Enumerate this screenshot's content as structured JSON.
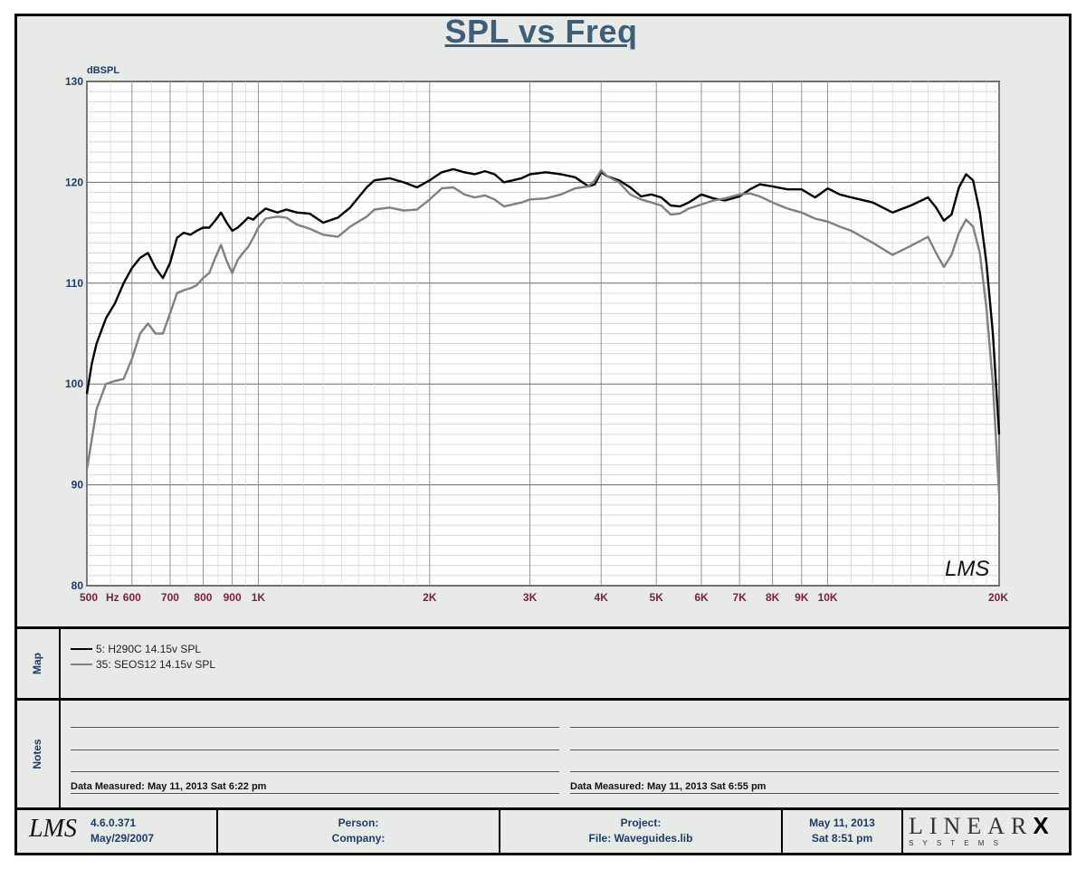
{
  "chart_data": {
    "type": "line",
    "title": "SPL vs Freq",
    "ylabel": "dBSPL",
    "xunit": "Hz",
    "xscale": "log",
    "xlim": [
      500,
      20000
    ],
    "ylim": [
      80,
      130
    ],
    "yticks": [
      80,
      90,
      100,
      110,
      120,
      130
    ],
    "xticks": [
      {
        "value": 500,
        "label": "500"
      },
      {
        "value": 600,
        "label": "600"
      },
      {
        "value": 700,
        "label": "700"
      },
      {
        "value": 800,
        "label": "800"
      },
      {
        "value": 900,
        "label": "900"
      },
      {
        "value": 1000,
        "label": "1K"
      },
      {
        "value": 2000,
        "label": "2K"
      },
      {
        "value": 3000,
        "label": "3K"
      },
      {
        "value": 4000,
        "label": "4K"
      },
      {
        "value": 5000,
        "label": "5K"
      },
      {
        "value": 6000,
        "label": "6K"
      },
      {
        "value": 7000,
        "label": "7K"
      },
      {
        "value": 8000,
        "label": "8K"
      },
      {
        "value": 9000,
        "label": "9K"
      },
      {
        "value": 10000,
        "label": "10K"
      },
      {
        "value": 20000,
        "label": "20K"
      }
    ],
    "grid": true,
    "series": [
      {
        "name": "5: H290C 14.15v SPL",
        "color": "#000000",
        "points": [
          [
            500,
            99
          ],
          [
            510,
            102
          ],
          [
            520,
            104
          ],
          [
            540,
            106.5
          ],
          [
            560,
            108
          ],
          [
            580,
            110
          ],
          [
            600,
            111.5
          ],
          [
            620,
            112.5
          ],
          [
            640,
            113
          ],
          [
            660,
            111.5
          ],
          [
            680,
            110.5
          ],
          [
            700,
            112
          ],
          [
            720,
            114.5
          ],
          [
            740,
            115
          ],
          [
            760,
            114.8
          ],
          [
            780,
            115.2
          ],
          [
            800,
            115.5
          ],
          [
            820,
            115.5
          ],
          [
            840,
            116.2
          ],
          [
            860,
            117
          ],
          [
            880,
            116
          ],
          [
            900,
            115.2
          ],
          [
            920,
            115.5
          ],
          [
            940,
            116
          ],
          [
            960,
            116.5
          ],
          [
            980,
            116.3
          ],
          [
            1000,
            116.8
          ],
          [
            1030,
            117.4
          ],
          [
            1080,
            117
          ],
          [
            1120,
            117.3
          ],
          [
            1170,
            117
          ],
          [
            1230,
            116.9
          ],
          [
            1300,
            116
          ],
          [
            1380,
            116.5
          ],
          [
            1450,
            117.5
          ],
          [
            1550,
            119.5
          ],
          [
            1600,
            120.2
          ],
          [
            1700,
            120.4
          ],
          [
            1800,
            120
          ],
          [
            1900,
            119.5
          ],
          [
            2000,
            120.2
          ],
          [
            2100,
            121
          ],
          [
            2200,
            121.3
          ],
          [
            2300,
            121
          ],
          [
            2400,
            120.8
          ],
          [
            2500,
            121.1
          ],
          [
            2600,
            120.8
          ],
          [
            2700,
            120
          ],
          [
            2900,
            120.4
          ],
          [
            3000,
            120.8
          ],
          [
            3200,
            121
          ],
          [
            3400,
            120.8
          ],
          [
            3600,
            120.5
          ],
          [
            3800,
            119.6
          ],
          [
            3900,
            119.8
          ],
          [
            4000,
            121
          ],
          [
            4100,
            120.6
          ],
          [
            4300,
            120.2
          ],
          [
            4500,
            119.5
          ],
          [
            4700,
            118.6
          ],
          [
            4900,
            118.8
          ],
          [
            5100,
            118.5
          ],
          [
            5300,
            117.7
          ],
          [
            5500,
            117.6
          ],
          [
            5700,
            118
          ],
          [
            6000,
            118.8
          ],
          [
            6300,
            118.4
          ],
          [
            6600,
            118.2
          ],
          [
            7000,
            118.6
          ],
          [
            7300,
            119.3
          ],
          [
            7600,
            119.8
          ],
          [
            8000,
            119.6
          ],
          [
            8500,
            119.3
          ],
          [
            9000,
            119.3
          ],
          [
            9500,
            118.5
          ],
          [
            10000,
            119.4
          ],
          [
            10500,
            118.8
          ],
          [
            11000,
            118.5
          ],
          [
            12000,
            118
          ],
          [
            13000,
            117
          ],
          [
            14000,
            117.7
          ],
          [
            15000,
            118.5
          ],
          [
            15500,
            117.5
          ],
          [
            16000,
            116.2
          ],
          [
            16500,
            116.8
          ],
          [
            17000,
            119.5
          ],
          [
            17500,
            120.8
          ],
          [
            18000,
            120.2
          ],
          [
            18500,
            117
          ],
          [
            19000,
            112
          ],
          [
            19500,
            105
          ],
          [
            20000,
            95
          ]
        ]
      },
      {
        "name": "35: SEOS12 14.15v SPL",
        "color": "#808080",
        "points": [
          [
            500,
            91.5
          ],
          [
            510,
            94.5
          ],
          [
            520,
            97.5
          ],
          [
            540,
            100
          ],
          [
            560,
            100.3
          ],
          [
            580,
            100.5
          ],
          [
            600,
            102.5
          ],
          [
            620,
            105
          ],
          [
            640,
            106
          ],
          [
            660,
            105
          ],
          [
            680,
            105
          ],
          [
            700,
            107
          ],
          [
            720,
            109
          ],
          [
            740,
            109.3
          ],
          [
            760,
            109.5
          ],
          [
            780,
            109.8
          ],
          [
            800,
            110.5
          ],
          [
            820,
            111
          ],
          [
            840,
            112.5
          ],
          [
            860,
            113.8
          ],
          [
            880,
            112.2
          ],
          [
            900,
            111
          ],
          [
            920,
            112.3
          ],
          [
            940,
            113
          ],
          [
            960,
            113.6
          ],
          [
            980,
            114.5
          ],
          [
            1000,
            115.5
          ],
          [
            1030,
            116.4
          ],
          [
            1080,
            116.6
          ],
          [
            1120,
            116.5
          ],
          [
            1170,
            115.8
          ],
          [
            1230,
            115.4
          ],
          [
            1300,
            114.8
          ],
          [
            1380,
            114.6
          ],
          [
            1450,
            115.6
          ],
          [
            1550,
            116.6
          ],
          [
            1600,
            117.3
          ],
          [
            1700,
            117.5
          ],
          [
            1800,
            117.2
          ],
          [
            1900,
            117.3
          ],
          [
            2000,
            118.3
          ],
          [
            2100,
            119.4
          ],
          [
            2200,
            119.5
          ],
          [
            2300,
            118.8
          ],
          [
            2400,
            118.5
          ],
          [
            2500,
            118.7
          ],
          [
            2600,
            118.3
          ],
          [
            2700,
            117.6
          ],
          [
            2900,
            118
          ],
          [
            3000,
            118.3
          ],
          [
            3200,
            118.4
          ],
          [
            3400,
            118.8
          ],
          [
            3600,
            119.4
          ],
          [
            3800,
            119.6
          ],
          [
            3900,
            120.2
          ],
          [
            4000,
            121.2
          ],
          [
            4100,
            120.6
          ],
          [
            4300,
            120
          ],
          [
            4500,
            118.8
          ],
          [
            4700,
            118.3
          ],
          [
            4900,
            118
          ],
          [
            5100,
            117.7
          ],
          [
            5300,
            116.8
          ],
          [
            5500,
            116.9
          ],
          [
            5700,
            117.4
          ],
          [
            6000,
            117.8
          ],
          [
            6300,
            118.2
          ],
          [
            6600,
            118.4
          ],
          [
            7000,
            118.8
          ],
          [
            7300,
            118.9
          ],
          [
            7600,
            118.6
          ],
          [
            8000,
            118
          ],
          [
            8500,
            117.4
          ],
          [
            9000,
            117
          ],
          [
            9500,
            116.4
          ],
          [
            10000,
            116.1
          ],
          [
            10500,
            115.6
          ],
          [
            11000,
            115.2
          ],
          [
            12000,
            114
          ],
          [
            13000,
            112.8
          ],
          [
            14000,
            113.7
          ],
          [
            15000,
            114.6
          ],
          [
            15500,
            113
          ],
          [
            16000,
            111.6
          ],
          [
            16500,
            112.8
          ],
          [
            17000,
            115
          ],
          [
            17500,
            116.3
          ],
          [
            18000,
            115.6
          ],
          [
            18500,
            113
          ],
          [
            19000,
            107.5
          ],
          [
            19500,
            100
          ],
          [
            20000,
            89
          ]
        ]
      }
    ]
  },
  "panels": {
    "map_label": "Map",
    "notes_label": "Notes"
  },
  "notes": {
    "left_measured": "Data Measured: May 11, 2013  Sat  6:22 pm",
    "right_measured": "Data Measured: May 11, 2013  Sat  6:55 pm"
  },
  "footer": {
    "logo": "LMS",
    "version": "4.6.0.371",
    "version_date": "May/29/2007",
    "person_label": "Person:",
    "company_label": "Company:",
    "project_label": "Project:",
    "file_label": "File: Waveguides.lib",
    "date": "May 11, 2013",
    "time": "Sat  8:51 pm",
    "brand": "LINEAR",
    "brand_mark": "X",
    "brand_sub": "S Y S T E M S"
  },
  "chart_logo": "LMS"
}
